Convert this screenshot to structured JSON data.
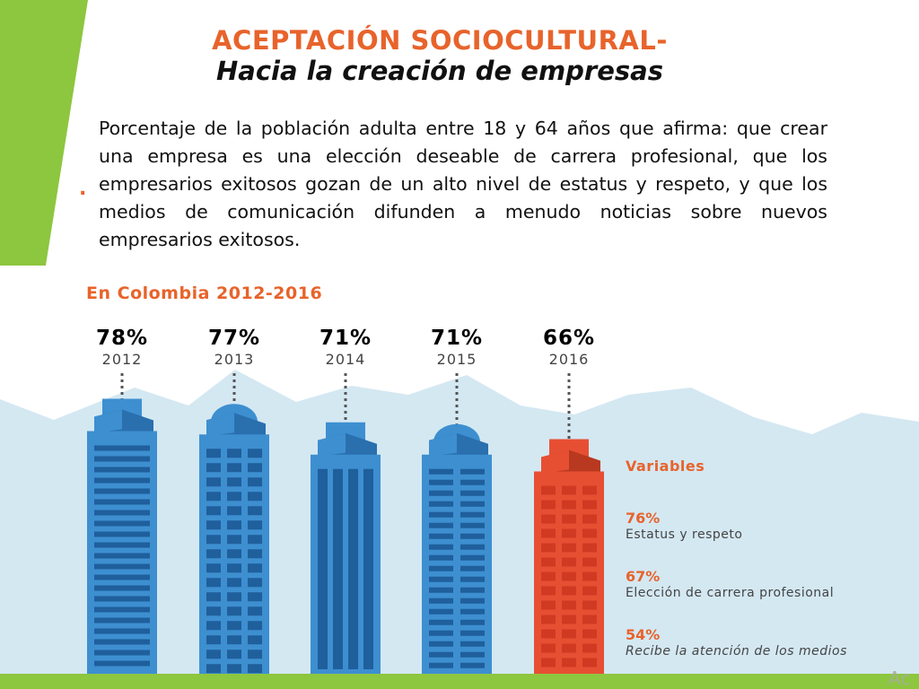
{
  "slide": {
    "title_line1": "ACEPTACIÓN SOCIOCULTURAL-",
    "title_line2": "Hacia la creación de empresas",
    "description": "Porcentaje de la población adulta entre 18 y 64 años que afirma: que crear una empresa es una elección deseable de carrera profesional, que los empresarios exitosos gozan de un alto nivel de estatus y respeto, y que los medios de comunicación difunden a menudo noticias sobre nuevos empresarios exitosos.",
    "bullet": ".",
    "watermark": "Ac"
  },
  "colors": {
    "green": "#8dc63f",
    "orange": "#e8632b",
    "blue": "#3d8fd0",
    "blue_dark": "#2a6fae",
    "red": "#e74f33",
    "mountain": "#d4e8f2"
  },
  "chart_data": {
    "type": "bar",
    "title": "En Colombia 2012-2016",
    "categories": [
      "2012",
      "2013",
      "2014",
      "2015",
      "2016"
    ],
    "values": [
      78,
      77,
      71,
      71,
      66
    ],
    "value_labels": [
      "78%",
      "77%",
      "71%",
      "71%",
      "66%"
    ],
    "highlight": "2016",
    "variables": {
      "title": "Variables",
      "items": [
        {
          "value": "76%",
          "label": "Estatus y respeto"
        },
        {
          "value": "67%",
          "label": "Elección de carrera profesional"
        },
        {
          "value": "54%",
          "label": "Recibe la atención de los medios"
        }
      ]
    }
  }
}
